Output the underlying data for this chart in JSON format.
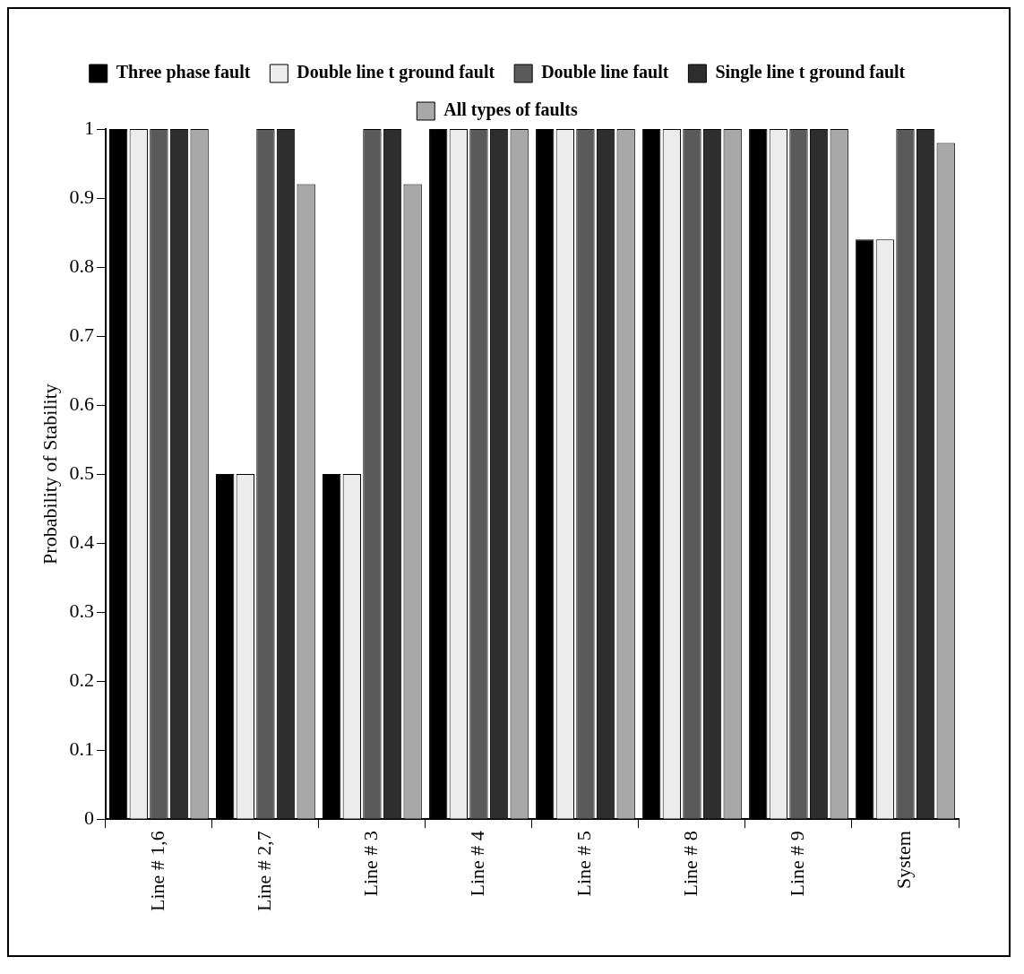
{
  "chart_data": {
    "type": "bar",
    "ylabel": "Probability of Stability",
    "categories": [
      "Line # 1,6",
      "Line # 2,7",
      "Line # 3",
      "Line # 4",
      "Line # 5",
      "Line # 8",
      "Line # 9",
      "System"
    ],
    "series": [
      {
        "name": "Three phase fault",
        "color": "#000000",
        "values": [
          1,
          0.5,
          0.5,
          1,
          1,
          1,
          1,
          0.84
        ]
      },
      {
        "name": "Double line t ground fault",
        "color": "#ececec",
        "values": [
          1,
          0.5,
          0.5,
          1,
          1,
          1,
          1,
          0.84
        ]
      },
      {
        "name": "Double line fault",
        "color": "#5a5a5a",
        "values": [
          1,
          1,
          1,
          1,
          1,
          1,
          1,
          1
        ]
      },
      {
        "name": "Single line t ground fault",
        "color": "#2e2e2e",
        "values": [
          1,
          1,
          1,
          1,
          1,
          1,
          1,
          1
        ]
      },
      {
        "name": "All types of faults",
        "color": "#a8a8a8",
        "values": [
          1,
          0.92,
          0.92,
          1,
          1,
          1,
          1,
          0.98
        ]
      }
    ],
    "ylim": [
      0,
      1
    ],
    "yticks": [
      0,
      0.1,
      0.2,
      0.3,
      0.4,
      0.5,
      0.6,
      0.7,
      0.8,
      0.9,
      1
    ],
    "grid": false,
    "legend": "top"
  }
}
